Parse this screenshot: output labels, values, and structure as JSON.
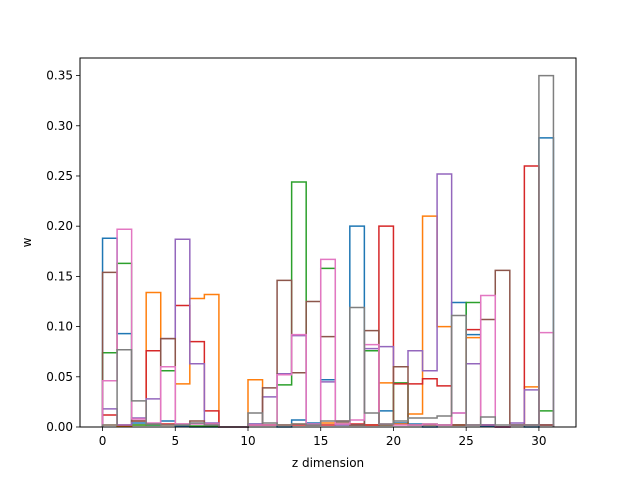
{
  "chart_data": {
    "type": "histogram-step",
    "title": "",
    "xlabel": "z dimension",
    "ylabel": "w",
    "xlim": [
      -1.55,
      32.55
    ],
    "ylim": [
      0,
      0.3675
    ],
    "xticks": [
      0,
      5,
      10,
      15,
      20,
      25,
      30
    ],
    "xtick_labels": [
      "0",
      "5",
      "10",
      "15",
      "20",
      "25",
      "30"
    ],
    "yticks": [
      0,
      0.05,
      0.1,
      0.15,
      0.2,
      0.25,
      0.3,
      0.35
    ],
    "ytick_labels": [
      "0.00",
      "0.05",
      "0.10",
      "0.15",
      "0.20",
      "0.25",
      "0.30",
      "0.35"
    ],
    "grid": false,
    "legend": "none",
    "bin_edges": [
      0,
      1,
      2,
      3,
      4,
      5,
      6,
      7,
      8,
      9,
      10,
      11,
      12,
      13,
      14,
      15,
      16,
      17,
      18,
      19,
      20,
      21,
      22,
      23,
      24,
      25,
      26,
      27,
      28,
      29,
      30,
      31
    ],
    "series": [
      {
        "color": "#1f77b4",
        "values": [
          0.188,
          0.093,
          0.004,
          0.002,
          0.006,
          0.001,
          0,
          0,
          0,
          0,
          0.003,
          0.002,
          0,
          0.007,
          0.004,
          0.047,
          0.003,
          0.2,
          0.002,
          0.016,
          0.004,
          0.003,
          0,
          0.002,
          0.124,
          0.092,
          0.001,
          0,
          0.002,
          0,
          0.288
        ]
      },
      {
        "color": "#ff7f0e",
        "values": [
          0.002,
          0.001,
          0.002,
          0.134,
          0.002,
          0.043,
          0.128,
          0.132,
          0,
          0,
          0.047,
          0.002,
          0.002,
          0.003,
          0.002,
          0.004,
          0.003,
          0.002,
          0.002,
          0.044,
          0.003,
          0.013,
          0.21,
          0.1,
          0.002,
          0.089,
          0.002,
          0,
          0.002,
          0.04,
          0.002
        ]
      },
      {
        "color": "#2ca02c",
        "values": [
          0.074,
          0.163,
          0.002,
          0.002,
          0.056,
          0.002,
          0.001,
          0.001,
          0,
          0,
          0.002,
          0.002,
          0.042,
          0.244,
          0.002,
          0.158,
          0.002,
          0.002,
          0.076,
          0.002,
          0.044,
          0.002,
          0.003,
          0.002,
          0.002,
          0.124,
          0.002,
          0,
          0.002,
          0.002,
          0.016
        ]
      },
      {
        "color": "#d62728",
        "values": [
          0.012,
          0.002,
          0.006,
          0.076,
          0.003,
          0.121,
          0.085,
          0.016,
          0,
          0,
          0.002,
          0.002,
          0.002,
          0.002,
          0.002,
          0.002,
          0.006,
          0.003,
          0.002,
          0.2,
          0.043,
          0.043,
          0.048,
          0.041,
          0.002,
          0.097,
          0.002,
          0,
          0.002,
          0.26,
          0.002
        ]
      },
      {
        "color": "#9467bd",
        "values": [
          0.018,
          0.002,
          0.009,
          0.028,
          0.088,
          0.187,
          0.063,
          0.004,
          0,
          0,
          0.003,
          0.03,
          0.053,
          0.091,
          0.002,
          0.045,
          0.002,
          0.002,
          0.078,
          0.08,
          0.06,
          0.076,
          0.056,
          0.252,
          0.014,
          0.063,
          0.002,
          0,
          0.004,
          0.037,
          0.002
        ]
      },
      {
        "color": "#8c564b",
        "values": [
          0.154,
          0.077,
          0.006,
          0.003,
          0.088,
          0.003,
          0.006,
          0.003,
          0,
          0,
          0.002,
          0.039,
          0.146,
          0.054,
          0.125,
          0.09,
          0.005,
          0.002,
          0.096,
          0.002,
          0.06,
          0.002,
          0.002,
          0.002,
          0.002,
          0.002,
          0.107,
          0.156,
          0.002,
          0.002,
          0.002
        ]
      },
      {
        "color": "#e377c2",
        "values": [
          0.046,
          0.197,
          0.008,
          0.004,
          0.06,
          0.003,
          0.003,
          0.003,
          0,
          0,
          0.002,
          0.002,
          0.052,
          0.092,
          0.003,
          0.167,
          0.003,
          0.007,
          0.082,
          0.003,
          0.002,
          0.002,
          0.003,
          0.002,
          0.014,
          0.002,
          0.131,
          0,
          0.002,
          0.002,
          0.094
        ]
      },
      {
        "color": "#7f7f7f",
        "values": [
          0.002,
          0.077,
          0.026,
          0.003,
          0.002,
          0.002,
          0.004,
          0.002,
          0,
          0,
          0.014,
          0.004,
          0.002,
          0.003,
          0.002,
          0.006,
          0.006,
          0.119,
          0.014,
          0.003,
          0.006,
          0.009,
          0.009,
          0.011,
          0.111,
          0.002,
          0.01,
          0.002,
          0.002,
          0.002,
          0.35
        ]
      }
    ]
  }
}
